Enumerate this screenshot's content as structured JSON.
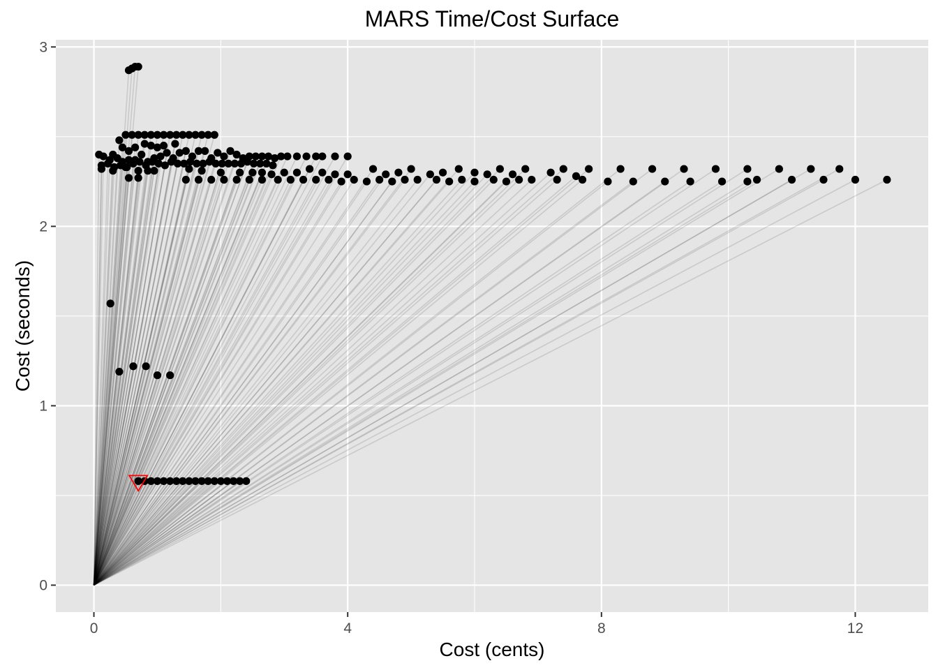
{
  "chart_data": {
    "type": "scatter",
    "title": "MARS Time/Cost Surface",
    "xlabel": "Cost (cents)",
    "ylabel": "Cost (seconds)",
    "xlim": [
      -0.6,
      13.15
    ],
    "ylim": [
      -0.15,
      3.04
    ],
    "x_ticks": [
      0,
      4,
      8,
      12
    ],
    "y_ticks": [
      0,
      1,
      2,
      3
    ],
    "x_tick_labels": [
      "0",
      "4",
      "8",
      "12"
    ],
    "y_tick_labels": [
      "0",
      "1",
      "2",
      "3"
    ],
    "grid": true,
    "legend": "none",
    "colors": {
      "panel": "#e5e5e5",
      "grid": "#ffffff",
      "points": "#000000",
      "segments": "#000000",
      "highlight": "#ff0000"
    },
    "origin": [
      0,
      0
    ],
    "highlight_point": {
      "x": 0.7,
      "y": 0.58,
      "shape": "triangle-down"
    },
    "series": [
      {
        "values_xy": [
          [
            0.55,
            2.87
          ],
          [
            0.6,
            2.88
          ],
          [
            0.65,
            2.89
          ],
          [
            0.7,
            2.89
          ],
          [
            0.26,
            1.57
          ],
          [
            0.4,
            1.19
          ],
          [
            0.62,
            1.22
          ],
          [
            0.82,
            1.22
          ],
          [
            1.0,
            1.17
          ],
          [
            1.2,
            1.17
          ],
          [
            0.7,
            0.58
          ],
          [
            0.8,
            0.58
          ],
          [
            0.9,
            0.58
          ],
          [
            1.0,
            0.58
          ],
          [
            1.1,
            0.58
          ],
          [
            1.2,
            0.58
          ],
          [
            1.3,
            0.58
          ],
          [
            1.4,
            0.58
          ],
          [
            1.5,
            0.58
          ],
          [
            1.6,
            0.58
          ],
          [
            1.7,
            0.58
          ],
          [
            1.8,
            0.58
          ],
          [
            1.9,
            0.58
          ],
          [
            2.0,
            0.58
          ],
          [
            2.1,
            0.58
          ],
          [
            2.2,
            0.58
          ],
          [
            2.3,
            0.58
          ],
          [
            2.4,
            0.58
          ],
          [
            0.5,
            2.51
          ],
          [
            0.6,
            2.51
          ],
          [
            0.7,
            2.51
          ],
          [
            0.8,
            2.51
          ],
          [
            0.9,
            2.51
          ],
          [
            1.0,
            2.51
          ],
          [
            1.1,
            2.51
          ],
          [
            1.2,
            2.51
          ],
          [
            1.3,
            2.51
          ],
          [
            1.4,
            2.51
          ],
          [
            1.5,
            2.51
          ],
          [
            1.6,
            2.51
          ],
          [
            1.7,
            2.51
          ],
          [
            1.8,
            2.51
          ],
          [
            1.9,
            2.51
          ],
          [
            0.4,
            2.48
          ],
          [
            0.45,
            2.44
          ],
          [
            0.55,
            2.42
          ],
          [
            0.65,
            2.44
          ],
          [
            0.8,
            2.46
          ],
          [
            0.9,
            2.45
          ],
          [
            1.0,
            2.44
          ],
          [
            1.1,
            2.45
          ],
          [
            1.28,
            2.46
          ],
          [
            0.08,
            2.4
          ],
          [
            0.15,
            2.39
          ],
          [
            0.25,
            2.37
          ],
          [
            0.3,
            2.4
          ],
          [
            0.37,
            2.38
          ],
          [
            0.45,
            2.36
          ],
          [
            0.55,
            2.37
          ],
          [
            0.65,
            2.37
          ],
          [
            0.75,
            2.4
          ],
          [
            0.85,
            2.36
          ],
          [
            0.95,
            2.38
          ],
          [
            1.05,
            2.39
          ],
          [
            1.15,
            2.41
          ],
          [
            1.25,
            2.38
          ],
          [
            1.35,
            2.41
          ],
          [
            1.45,
            2.42
          ],
          [
            1.55,
            2.39
          ],
          [
            1.65,
            2.42
          ],
          [
            1.75,
            2.42
          ],
          [
            1.85,
            2.38
          ],
          [
            1.95,
            2.41
          ],
          [
            2.05,
            2.39
          ],
          [
            2.15,
            2.42
          ],
          [
            2.25,
            2.4
          ],
          [
            2.35,
            2.38
          ],
          [
            2.45,
            2.39
          ],
          [
            2.55,
            2.39
          ],
          [
            2.65,
            2.39
          ],
          [
            2.75,
            2.39
          ],
          [
            2.85,
            2.38
          ],
          [
            2.95,
            2.39
          ],
          [
            3.05,
            2.39
          ],
          [
            3.2,
            2.39
          ],
          [
            3.35,
            2.39
          ],
          [
            3.5,
            2.39
          ],
          [
            3.6,
            2.39
          ],
          [
            3.8,
            2.39
          ],
          [
            4.0,
            2.39
          ],
          [
            0.12,
            2.34
          ],
          [
            0.22,
            2.35
          ],
          [
            0.32,
            2.33
          ],
          [
            0.42,
            2.34
          ],
          [
            0.52,
            2.33
          ],
          [
            0.62,
            2.35
          ],
          [
            0.72,
            2.36
          ],
          [
            0.82,
            2.34
          ],
          [
            0.92,
            2.36
          ],
          [
            1.02,
            2.35
          ],
          [
            1.12,
            2.34
          ],
          [
            1.22,
            2.36
          ],
          [
            1.32,
            2.35
          ],
          [
            1.42,
            2.35
          ],
          [
            1.52,
            2.36
          ],
          [
            1.62,
            2.35
          ],
          [
            1.72,
            2.35
          ],
          [
            1.82,
            2.36
          ],
          [
            1.92,
            2.35
          ],
          [
            2.02,
            2.35
          ],
          [
            2.12,
            2.35
          ],
          [
            2.22,
            2.35
          ],
          [
            2.32,
            2.35
          ],
          [
            2.42,
            2.36
          ],
          [
            2.52,
            2.35
          ],
          [
            2.62,
            2.35
          ],
          [
            2.72,
            2.35
          ],
          [
            2.82,
            2.34
          ],
          [
            0.12,
            2.32
          ],
          [
            0.3,
            2.31
          ],
          [
            0.5,
            2.33
          ],
          [
            0.7,
            2.31
          ],
          [
            0.85,
            2.31
          ],
          [
            0.95,
            2.31
          ],
          [
            1.5,
            2.32
          ],
          [
            1.7,
            2.31
          ],
          [
            2.0,
            2.3
          ],
          [
            2.3,
            2.3
          ],
          [
            2.5,
            2.3
          ],
          [
            2.65,
            2.3
          ],
          [
            2.8,
            2.29
          ],
          [
            3.0,
            2.3
          ],
          [
            3.2,
            2.3
          ],
          [
            3.4,
            2.32
          ],
          [
            3.6,
            2.3
          ],
          [
            3.8,
            2.29
          ],
          [
            4.0,
            2.29
          ],
          [
            4.4,
            2.32
          ],
          [
            4.6,
            2.29
          ],
          [
            4.8,
            2.3
          ],
          [
            5.0,
            2.32
          ],
          [
            5.3,
            2.29
          ],
          [
            5.5,
            2.3
          ],
          [
            5.75,
            2.32
          ],
          [
            6.0,
            2.3
          ],
          [
            6.2,
            2.29
          ],
          [
            6.4,
            2.32
          ],
          [
            6.6,
            2.29
          ],
          [
            6.8,
            2.32
          ],
          [
            7.2,
            2.3
          ],
          [
            7.4,
            2.32
          ],
          [
            7.6,
            2.28
          ],
          [
            7.8,
            2.32
          ],
          [
            8.3,
            2.32
          ],
          [
            8.8,
            2.32
          ],
          [
            9.3,
            2.32
          ],
          [
            9.8,
            2.32
          ],
          [
            10.3,
            2.32
          ],
          [
            10.8,
            2.32
          ],
          [
            11.3,
            2.32
          ],
          [
            11.75,
            2.32
          ],
          [
            0.55,
            2.27
          ],
          [
            0.7,
            2.27
          ],
          [
            1.45,
            2.26
          ],
          [
            1.65,
            2.26
          ],
          [
            1.85,
            2.26
          ],
          [
            2.05,
            2.26
          ],
          [
            2.25,
            2.26
          ],
          [
            2.45,
            2.26
          ],
          [
            2.65,
            2.26
          ],
          [
            2.9,
            2.26
          ],
          [
            3.1,
            2.26
          ],
          [
            3.3,
            2.26
          ],
          [
            3.5,
            2.26
          ],
          [
            3.7,
            2.26
          ],
          [
            3.9,
            2.25
          ],
          [
            4.1,
            2.26
          ],
          [
            4.3,
            2.25
          ],
          [
            4.5,
            2.26
          ],
          [
            4.7,
            2.25
          ],
          [
            4.9,
            2.26
          ],
          [
            5.1,
            2.26
          ],
          [
            5.4,
            2.26
          ],
          [
            5.6,
            2.25
          ],
          [
            5.8,
            2.26
          ],
          [
            6.0,
            2.25
          ],
          [
            6.3,
            2.26
          ],
          [
            6.5,
            2.25
          ],
          [
            6.7,
            2.26
          ],
          [
            6.9,
            2.26
          ],
          [
            7.3,
            2.26
          ],
          [
            7.7,
            2.26
          ],
          [
            8.1,
            2.25
          ],
          [
            8.5,
            2.25
          ],
          [
            9.0,
            2.25
          ],
          [
            9.4,
            2.25
          ],
          [
            9.9,
            2.25
          ],
          [
            10.3,
            2.25
          ],
          [
            10.45,
            2.26
          ],
          [
            11.0,
            2.26
          ],
          [
            11.5,
            2.26
          ],
          [
            12.0,
            2.26
          ],
          [
            12.5,
            2.26
          ]
        ]
      }
    ]
  }
}
